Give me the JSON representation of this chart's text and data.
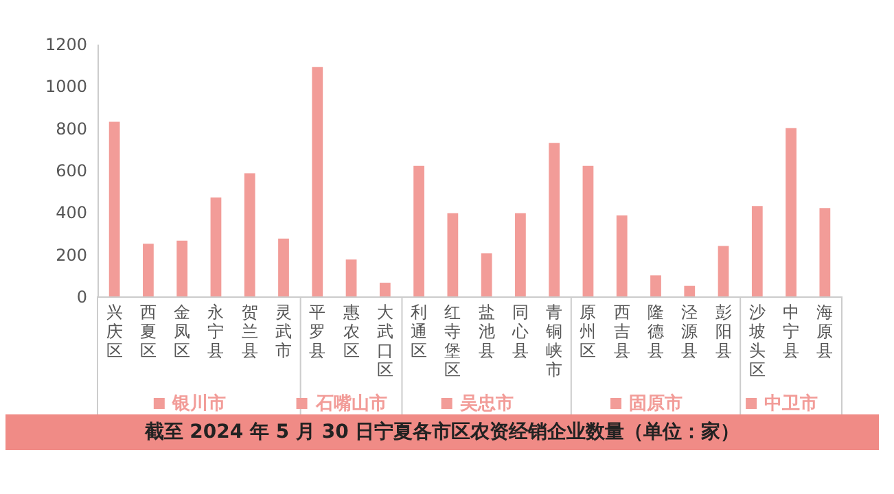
{
  "chart_data": {
    "type": "bar",
    "title": "截至 2024 年 5 月 30 日宁夏各市区农资经销企业数量（单位：家）",
    "categories": [
      "兴庆区",
      "西夏区",
      "金凤区",
      "永宁县",
      "贺兰县",
      "灵武市",
      "平罗县",
      "惠农区",
      "大武口区",
      "利通区",
      "红寺堡区",
      "盐池县",
      "同心县",
      "青铜峡市",
      "原州区",
      "西吉县",
      "隆德县",
      "泾源县",
      "彭阳县",
      "沙坡头区",
      "中宁县",
      "海原县"
    ],
    "series": [
      {
        "name": "银川市",
        "color": "#f29c98",
        "values": [
          830,
          250,
          265,
          470,
          585,
          275,
          null,
          null,
          null,
          null,
          null,
          null,
          null,
          null,
          null,
          null,
          null,
          null,
          null,
          null,
          null,
          null
        ]
      },
      {
        "name": "石嘴山市",
        "color": "#f29c98",
        "values": [
          null,
          null,
          null,
          null,
          null,
          null,
          1090,
          175,
          65,
          null,
          null,
          null,
          null,
          null,
          null,
          null,
          null,
          null,
          null,
          null,
          null,
          null
        ]
      },
      {
        "name": "吴忠市",
        "color": "#f29c98",
        "values": [
          null,
          null,
          null,
          null,
          null,
          null,
          null,
          null,
          null,
          620,
          395,
          205,
          395,
          730,
          null,
          null,
          null,
          null,
          null,
          null,
          null,
          null
        ]
      },
      {
        "name": "固原市",
        "color": "#f29c98",
        "values": [
          null,
          null,
          null,
          null,
          null,
          null,
          null,
          null,
          null,
          null,
          null,
          null,
          null,
          null,
          620,
          385,
          100,
          50,
          240,
          null,
          null,
          null
        ]
      },
      {
        "name": "中卫市",
        "color": "#f29c98",
        "values": [
          null,
          null,
          null,
          null,
          null,
          null,
          null,
          null,
          null,
          null,
          null,
          null,
          null,
          null,
          null,
          null,
          null,
          null,
          null,
          430,
          800,
          420
        ]
      }
    ],
    "ylim": [
      0,
      1200
    ],
    "yticks": [
      0,
      200,
      400,
      600,
      800,
      1000,
      1200
    ],
    "grid": false,
    "legend": "bottom"
  }
}
